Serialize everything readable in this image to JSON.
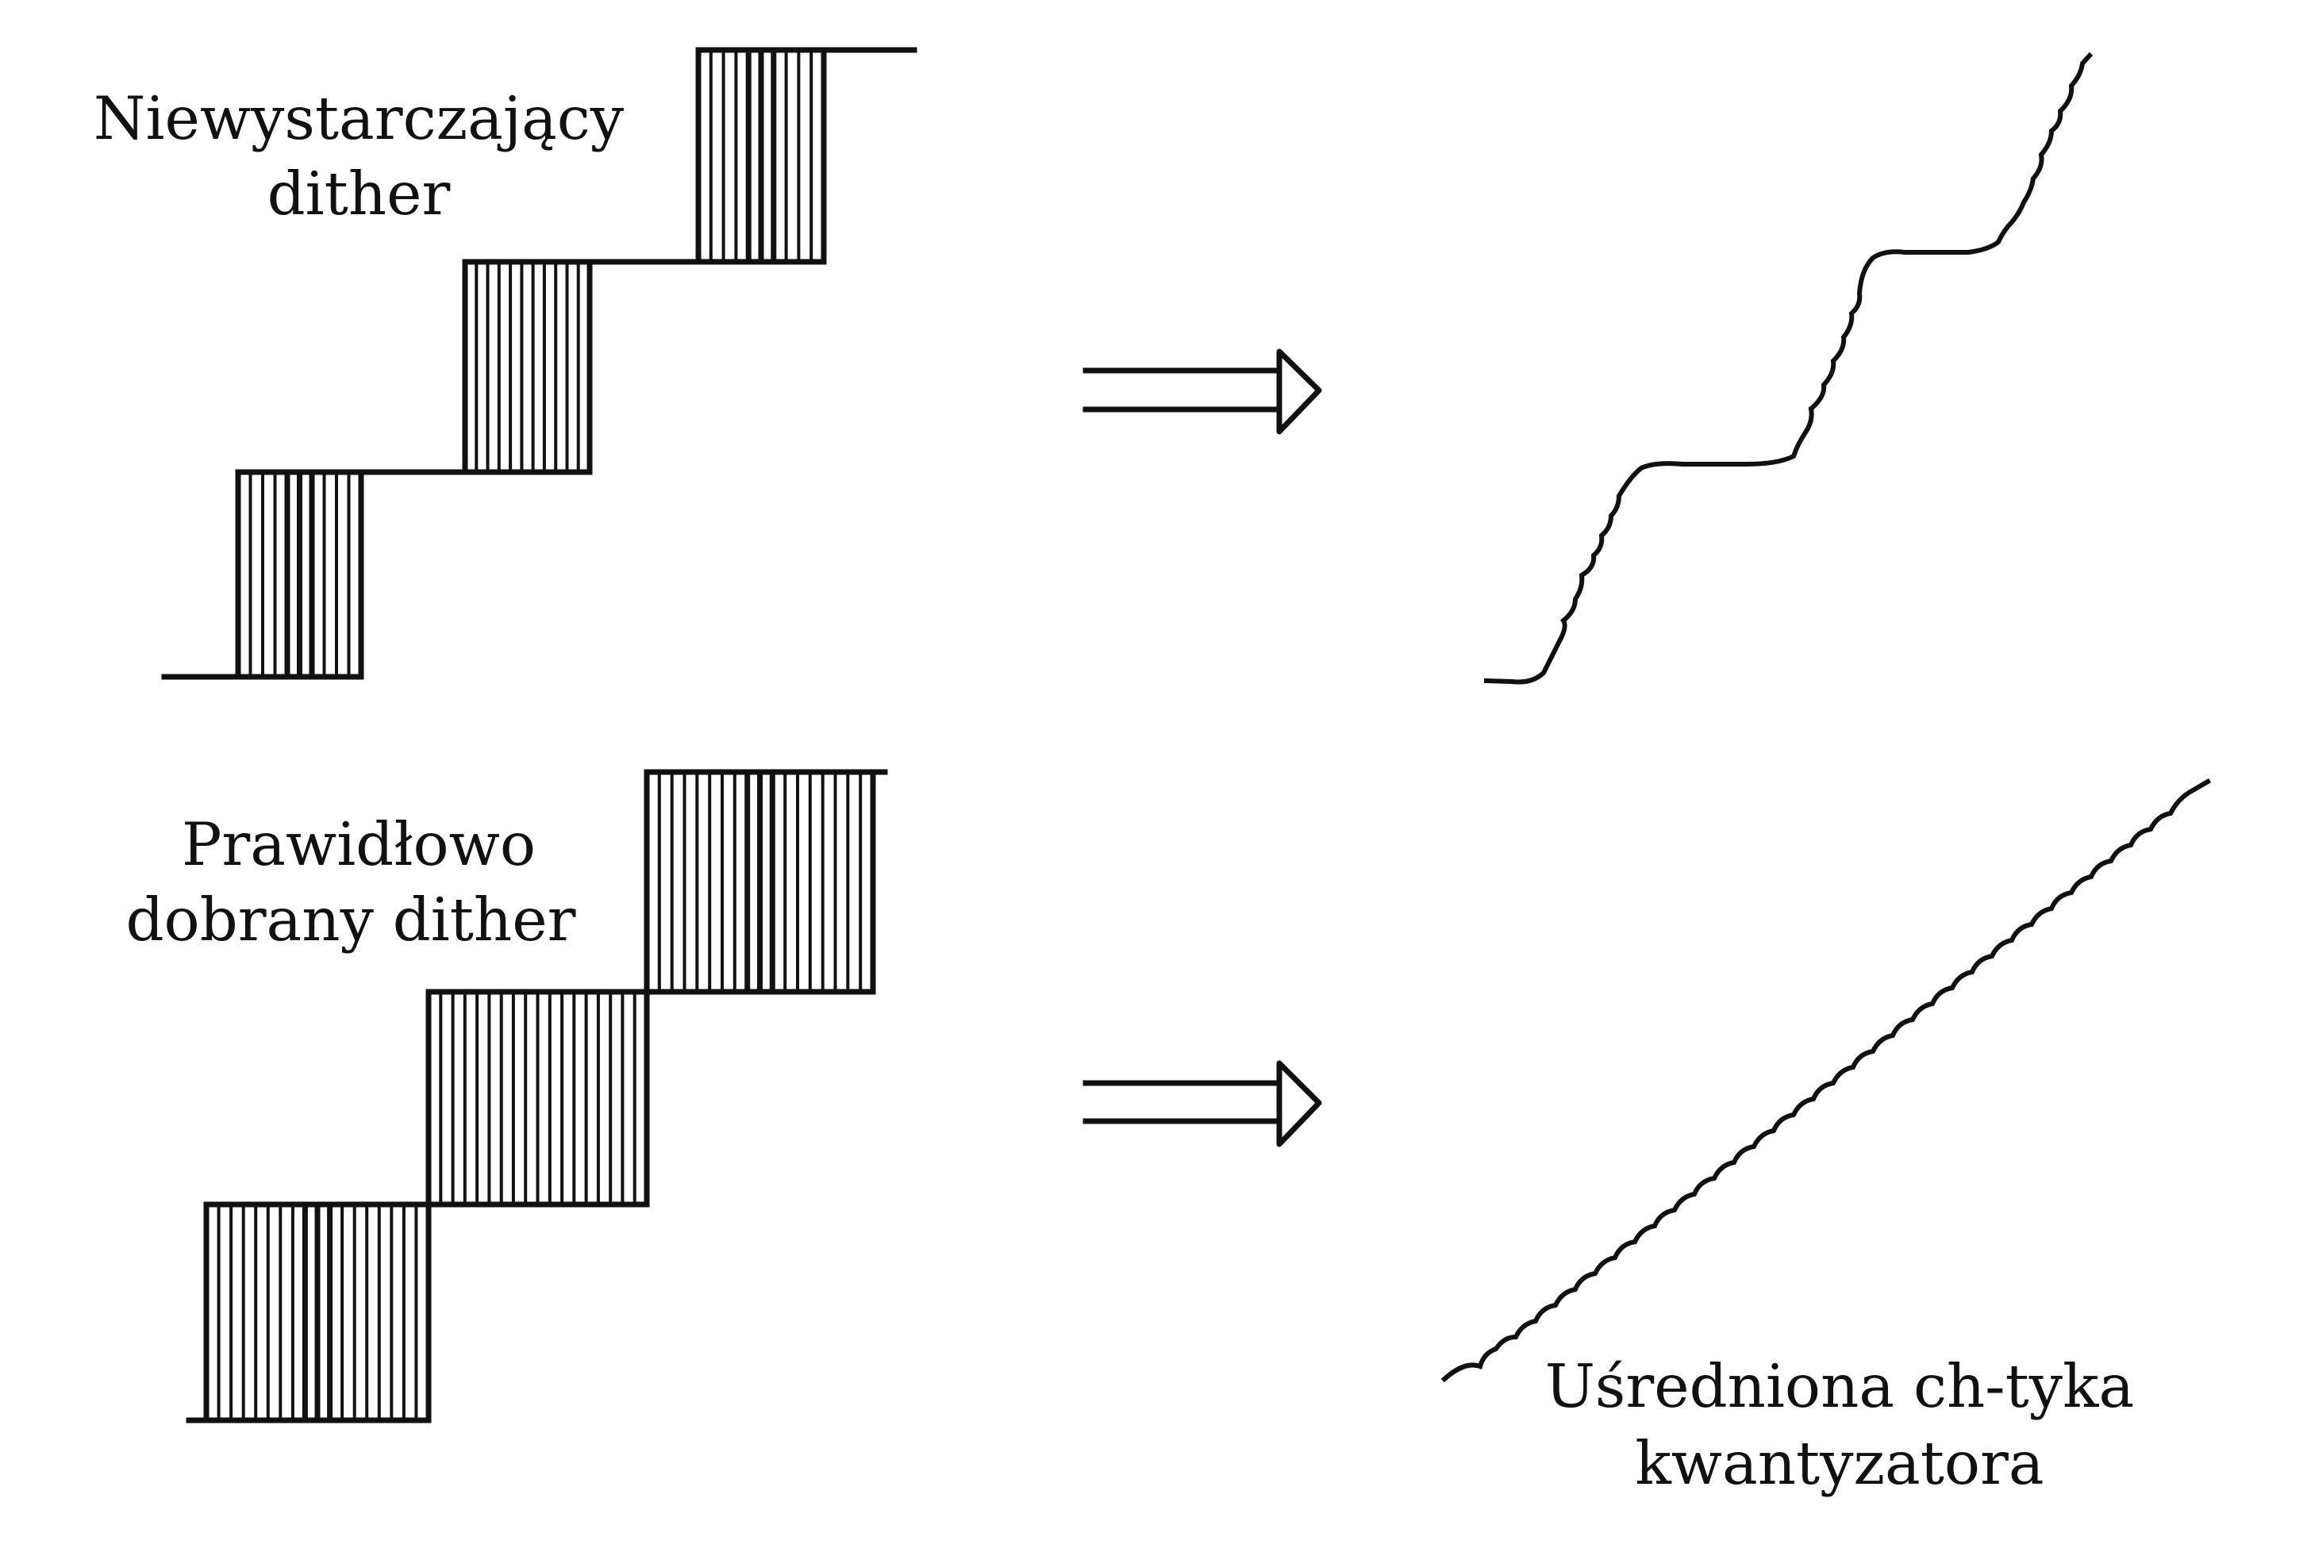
{
  "labels": {
    "insufficient_line1": "Niewystarczający",
    "insufficient_line2": "dither",
    "proper_line1": "Prawidłowo",
    "proper_line2": "dobrany dither",
    "averaged_line1": "Uśredniona ch-tyka",
    "averaged_line2": "kwantyzatora"
  },
  "colors": {
    "ink": "#111111",
    "background": "#ffffff"
  },
  "icons": {
    "arrow": "double-line-right-arrow-icon"
  }
}
